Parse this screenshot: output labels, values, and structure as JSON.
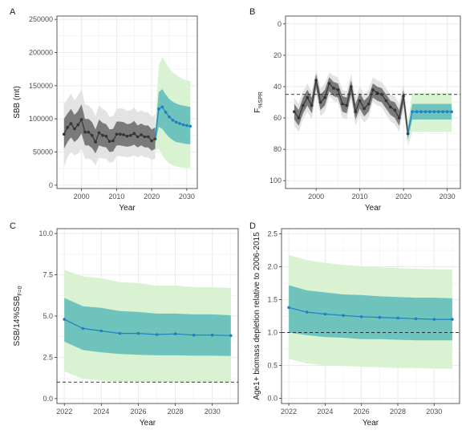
{
  "colors": {
    "hist_line": "#333333",
    "hist_inner": "#7a7a7a",
    "hist_outer": "#e3e3e3",
    "proj_line": "#1f7fbf",
    "proj_inner": "#6fc3bd",
    "proj_outer": "#d8f2d2",
    "grid": "#ebebeb",
    "panel_border": "#333333",
    "ref_line": "#000000"
  },
  "chart_data": [
    {
      "label": "A",
      "type": "line",
      "xlabel": "Year",
      "ylabel": "SBB (mt)",
      "xlim": [
        1993,
        2033
      ],
      "ylim": [
        -5000,
        255000
      ],
      "x_ticks": [
        2000,
        2010,
        2020,
        2030
      ],
      "x_tick_labels": [
        "2000",
        "2010",
        "2020",
        "2030"
      ],
      "y_ticks": [
        0,
        50000,
        100000,
        150000,
        200000,
        250000
      ],
      "y_tick_labels": [
        "0",
        "50000",
        "100000",
        "150000",
        "200000",
        "250000"
      ],
      "y_reversed": false,
      "ref_line": null,
      "hist": {
        "x": [
          1995,
          1996,
          1997,
          1998,
          1999,
          2000,
          2001,
          2002,
          2003,
          2004,
          2005,
          2006,
          2007,
          2008,
          2009,
          2010,
          2011,
          2012,
          2013,
          2014,
          2015,
          2016,
          2017,
          2018,
          2019,
          2020,
          2021
        ],
        "y": [
          77000,
          87000,
          93000,
          85000,
          91000,
          99000,
          80000,
          80000,
          75000,
          65000,
          79000,
          75000,
          74000,
          66000,
          67000,
          77000,
          77000,
          76000,
          74000,
          75000,
          78000,
          73000,
          76000,
          73000,
          73000,
          67000,
          70000
        ],
        "inner_lo": [
          55000,
          65000,
          72000,
          65000,
          70000,
          78000,
          60000,
          60000,
          56000,
          48000,
          60000,
          58000,
          57000,
          50000,
          51000,
          60000,
          60000,
          59000,
          58000,
          59000,
          61000,
          57000,
          60000,
          57000,
          57000,
          52000,
          55000
        ],
        "inner_hi": [
          100000,
          108000,
          115000,
          106000,
          112000,
          122000,
          100000,
          100000,
          95000,
          84000,
          99000,
          94000,
          92000,
          84000,
          85000,
          96000,
          96000,
          95000,
          92000,
          93000,
          97000,
          90000,
          93000,
          90000,
          90000,
          84000,
          87000
        ],
        "outer_lo": [
          28000,
          42000,
          50000,
          45000,
          48000,
          55000,
          40000,
          40000,
          37000,
          30000,
          42000,
          40000,
          40000,
          34000,
          35000,
          44000,
          44000,
          43000,
          42000,
          43000,
          45000,
          42000,
          45000,
          42000,
          42000,
          38000,
          40000
        ],
        "outer_hi": [
          122000,
          130000,
          138000,
          128000,
          135000,
          145000,
          122000,
          120000,
          115000,
          104000,
          120000,
          115000,
          112000,
          103000,
          104000,
          115000,
          116000,
          115000,
          112000,
          113000,
          117000,
          110000,
          113000,
          110000,
          110000,
          103000,
          107000
        ]
      },
      "proj": {
        "x": [
          2021,
          2022,
          2023,
          2024,
          2025,
          2026,
          2027,
          2028,
          2029,
          2030,
          2031
        ],
        "y": [
          70000,
          115000,
          118000,
          110000,
          103000,
          98000,
          95000,
          93000,
          91000,
          90000,
          89000
        ],
        "inner_lo": [
          62000,
          88000,
          85000,
          78000,
          72000,
          68000,
          65000,
          64000,
          63000,
          62000,
          62000
        ],
        "inner_hi": [
          78000,
          140000,
          145000,
          137000,
          130000,
          126000,
          123000,
          121000,
          120000,
          119000,
          118000
        ],
        "outer_lo": [
          52000,
          55000,
          45000,
          38000,
          33000,
          30000,
          28000,
          27000,
          26000,
          26000,
          26000
        ],
        "outer_hi": [
          88000,
          180000,
          193000,
          185000,
          176000,
          170000,
          166000,
          163000,
          160000,
          158000,
          157000
        ]
      }
    },
    {
      "label": "B",
      "type": "line",
      "xlabel": "Year",
      "ylabel": "F",
      "ylabel_subscript": "%SPR",
      "xlim": [
        1993,
        2033
      ],
      "ylim": [
        -5,
        105
      ],
      "x_ticks": [
        2000,
        2010,
        2020,
        2030
      ],
      "x_tick_labels": [
        "2000",
        "2010",
        "2020",
        "2030"
      ],
      "y_ticks": [
        0,
        20,
        40,
        60,
        80,
        100
      ],
      "y_tick_labels": [
        "0",
        "20",
        "40",
        "60",
        "80",
        "100"
      ],
      "y_reversed": true,
      "ref_line": 45,
      "hist": {
        "x": [
          1995,
          1996,
          1997,
          1998,
          1999,
          2000,
          2001,
          2002,
          2003,
          2004,
          2005,
          2006,
          2007,
          2008,
          2009,
          2010,
          2011,
          2012,
          2013,
          2014,
          2015,
          2016,
          2017,
          2018,
          2019,
          2020,
          2021
        ],
        "y": [
          56,
          60,
          52,
          47,
          52,
          36,
          50,
          47,
          38,
          41,
          42,
          51,
          52,
          40,
          56,
          49,
          54,
          51,
          42,
          44,
          45,
          49,
          53,
          55,
          60,
          46,
          70
        ],
        "inner_lo": [
          51,
          55,
          47,
          42,
          47,
          32,
          45,
          42,
          34,
          37,
          38,
          46,
          47,
          36,
          51,
          44,
          49,
          46,
          38,
          40,
          41,
          45,
          49,
          50,
          55,
          42,
          66
        ],
        "inner_hi": [
          61,
          65,
          57,
          52,
          57,
          41,
          55,
          52,
          43,
          46,
          47,
          56,
          57,
          45,
          61,
          54,
          59,
          56,
          47,
          49,
          50,
          54,
          58,
          60,
          65,
          51,
          74
        ],
        "outer_lo": [
          47,
          51,
          43,
          38,
          43,
          29,
          41,
          38,
          31,
          33,
          34,
          42,
          43,
          32,
          47,
          40,
          45,
          42,
          34,
          36,
          37,
          41,
          45,
          46,
          51,
          38,
          62
        ],
        "outer_hi": [
          65,
          69,
          61,
          56,
          61,
          44,
          59,
          56,
          46,
          49,
          50,
          60,
          61,
          48,
          65,
          58,
          63,
          60,
          50,
          52,
          53,
          58,
          62,
          64,
          69,
          55,
          78
        ]
      },
      "proj": {
        "x": [
          2021,
          2022,
          2023,
          2024,
          2025,
          2026,
          2027,
          2028,
          2029,
          2030,
          2031
        ],
        "y": [
          70,
          56,
          56,
          56,
          56,
          56,
          56,
          56,
          56,
          56,
          56
        ],
        "inner_lo": [
          66,
          51,
          51,
          51,
          51,
          51,
          51,
          51,
          51,
          51,
          51
        ],
        "inner_hi": [
          74,
          61,
          61,
          61,
          61,
          61,
          61,
          61,
          61,
          61,
          61
        ],
        "outer_lo": [
          62,
          44,
          44,
          44,
          44,
          44,
          44,
          44,
          44,
          44,
          44
        ],
        "outer_hi": [
          78,
          69,
          69,
          69,
          69,
          69,
          69,
          69,
          69,
          69,
          69
        ]
      }
    },
    {
      "label": "C",
      "type": "line",
      "xlabel": "Year",
      "ylabel": "SSB/14%SSB",
      "ylabel_subscript": "F=0",
      "xlim": [
        2021.6,
        2031.4
      ],
      "ylim": [
        -0.3,
        10.3
      ],
      "x_ticks": [
        2022,
        2024,
        2026,
        2028,
        2030
      ],
      "x_tick_labels": [
        "2022",
        "2024",
        "2026",
        "2028",
        "2030"
      ],
      "y_ticks": [
        0,
        2.5,
        5,
        7.5,
        10
      ],
      "y_tick_labels": [
        "0.0",
        "2.5",
        "5.0",
        "7.5",
        "10.0"
      ],
      "y_reversed": false,
      "ref_line": 1,
      "hist": null,
      "proj": {
        "x": [
          2022,
          2023,
          2024,
          2025,
          2026,
          2027,
          2028,
          2029,
          2030,
          2031
        ],
        "y": [
          4.8,
          4.25,
          4.1,
          3.95,
          3.95,
          3.88,
          3.92,
          3.85,
          3.85,
          3.82
        ],
        "inner_lo": [
          3.45,
          2.95,
          2.8,
          2.7,
          2.65,
          2.62,
          2.62,
          2.6,
          2.6,
          2.58
        ],
        "inner_hi": [
          6.1,
          5.6,
          5.5,
          5.3,
          5.25,
          5.15,
          5.15,
          5.1,
          5.1,
          5.05
        ],
        "outer_lo": [
          1.65,
          1.2,
          1.1,
          1.02,
          1.0,
          0.98,
          0.98,
          0.96,
          0.95,
          0.95
        ],
        "outer_hi": [
          7.8,
          7.4,
          7.3,
          7.05,
          7.0,
          6.85,
          6.85,
          6.75,
          6.75,
          6.7
        ]
      }
    },
    {
      "label": "D",
      "type": "line",
      "xlabel": "Year",
      "ylabel": "Age1+ biomass depletion relative to 2006-2015",
      "xlim": [
        2021.6,
        2031.4
      ],
      "ylim": [
        -0.08,
        2.58
      ],
      "x_ticks": [
        2022,
        2024,
        2026,
        2028,
        2030
      ],
      "x_tick_labels": [
        "2022",
        "2024",
        "2026",
        "2028",
        "2030"
      ],
      "y_ticks": [
        0,
        0.5,
        1,
        1.5,
        2,
        2.5
      ],
      "y_tick_labels": [
        "0.0",
        "0.5",
        "1.0",
        "1.5",
        "2.0",
        "2.5"
      ],
      "y_reversed": false,
      "ref_line": 1,
      "hist": null,
      "proj": {
        "x": [
          2022,
          2023,
          2024,
          2025,
          2026,
          2027,
          2028,
          2029,
          2030,
          2031
        ],
        "y": [
          1.38,
          1.31,
          1.28,
          1.26,
          1.24,
          1.23,
          1.22,
          1.21,
          1.2,
          1.2
        ],
        "inner_lo": [
          1.0,
          0.96,
          0.93,
          0.92,
          0.9,
          0.9,
          0.89,
          0.88,
          0.88,
          0.88
        ],
        "inner_hi": [
          1.72,
          1.64,
          1.61,
          1.58,
          1.57,
          1.55,
          1.54,
          1.53,
          1.53,
          1.52
        ],
        "outer_lo": [
          0.6,
          0.53,
          0.5,
          0.49,
          0.48,
          0.47,
          0.46,
          0.46,
          0.45,
          0.45
        ],
        "outer_hi": [
          2.18,
          2.1,
          2.06,
          2.03,
          2.01,
          1.99,
          1.98,
          1.97,
          1.96,
          1.96
        ]
      }
    }
  ]
}
